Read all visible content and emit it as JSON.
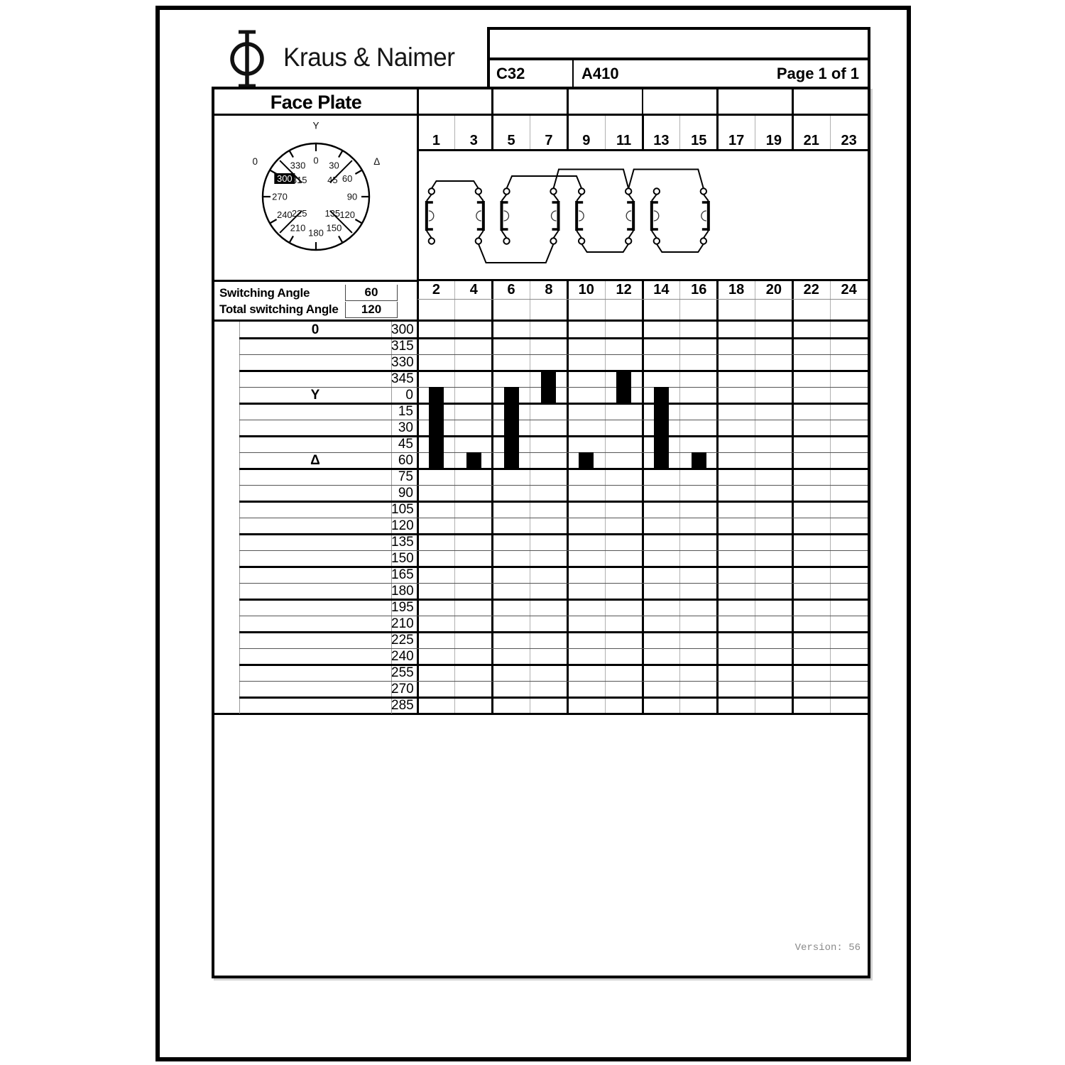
{
  "brand": "Kraus & Naimer",
  "doc_header": {
    "type_code": "C32",
    "article_code": "A410",
    "page_label": "Page 1 of 1"
  },
  "section_title": "Face Plate",
  "dial": {
    "position_labels": [
      {
        "text": "Y",
        "angle": 0
      },
      {
        "text": "0",
        "angle": -60
      },
      {
        "text": "Δ",
        "angle": 60
      }
    ],
    "scale": [
      {
        "text": "0",
        "angle": 0
      },
      {
        "text": "30",
        "angle": 30
      },
      {
        "text": "60",
        "angle": 60
      },
      {
        "text": "90",
        "angle": 90
      },
      {
        "text": "120",
        "angle": 120
      },
      {
        "text": "150",
        "angle": 150
      },
      {
        "text": "180",
        "angle": 180
      },
      {
        "text": "210",
        "angle": 210
      },
      {
        "text": "240",
        "angle": 240
      },
      {
        "text": "270",
        "angle": 270
      },
      {
        "text": "300",
        "angle": 300
      },
      {
        "text": "330",
        "angle": 330
      }
    ],
    "inner_scale": [
      {
        "text": "45",
        "angle": 45
      },
      {
        "text": "135",
        "angle": 135
      },
      {
        "text": "225",
        "angle": 225
      },
      {
        "text": "315",
        "angle": 315
      }
    ],
    "selected": "300"
  },
  "switching": {
    "angle_label": "Switching Angle",
    "angle_value": "60",
    "total_label": "Total switching Angle",
    "total_value": "120"
  },
  "matrix": {
    "top_terminals": [
      "1",
      "3",
      "5",
      "7",
      "9",
      "11",
      "13",
      "15",
      "17",
      "19",
      "21",
      "23"
    ],
    "bottom_terminals": [
      "2",
      "4",
      "6",
      "8",
      "10",
      "12",
      "14",
      "16",
      "18",
      "20",
      "22",
      "24"
    ],
    "rows": [
      {
        "label": "0",
        "angle": "300"
      },
      {
        "label": "",
        "angle": "315"
      },
      {
        "label": "",
        "angle": "330"
      },
      {
        "label": "",
        "angle": "345"
      },
      {
        "label": "Y",
        "angle": "0"
      },
      {
        "label": "",
        "angle": "15"
      },
      {
        "label": "",
        "angle": "30"
      },
      {
        "label": "",
        "angle": "45"
      },
      {
        "label": "Δ",
        "angle": "60"
      },
      {
        "label": "",
        "angle": "75"
      },
      {
        "label": "",
        "angle": "90"
      },
      {
        "label": "",
        "angle": "105"
      },
      {
        "label": "",
        "angle": "120"
      },
      {
        "label": "",
        "angle": "135"
      },
      {
        "label": "",
        "angle": "150"
      },
      {
        "label": "",
        "angle": "165"
      },
      {
        "label": "",
        "angle": "180"
      },
      {
        "label": "",
        "angle": "195"
      },
      {
        "label": "",
        "angle": "210"
      },
      {
        "label": "",
        "angle": "225"
      },
      {
        "label": "",
        "angle": "240"
      },
      {
        "label": "",
        "angle": "255"
      },
      {
        "label": "",
        "angle": "270"
      },
      {
        "label": "",
        "angle": "285"
      }
    ],
    "closed_segments": [
      {
        "col": 0,
        "from": "0",
        "to": "60"
      },
      {
        "col": 1,
        "from": "60",
        "to": "60"
      },
      {
        "col": 2,
        "from": "0",
        "to": "60"
      },
      {
        "col": 3,
        "from": "345",
        "to": "0"
      },
      {
        "col": 4,
        "from": "60",
        "to": "60"
      },
      {
        "col": 5,
        "from": "345",
        "to": "0"
      },
      {
        "col": 6,
        "from": "0",
        "to": "60"
      },
      {
        "col": 7,
        "from": "60",
        "to": "60"
      }
    ]
  },
  "version_label": "Version: 56"
}
